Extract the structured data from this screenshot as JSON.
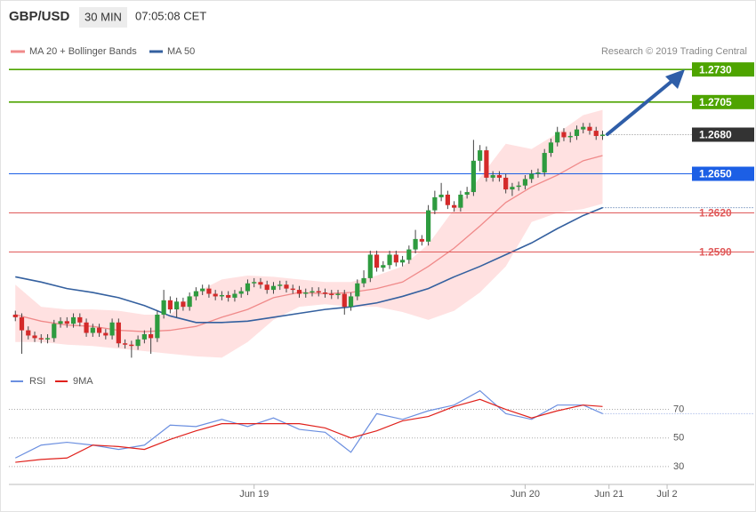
{
  "header": {
    "symbol": "GBP/USD",
    "interval": "30 MIN",
    "time": "07:05:08 CET"
  },
  "credit": "Research © 2019 Trading Central",
  "chart_data": [
    {
      "type": "candlestick",
      "up_color": "#2e9b3f",
      "down_color": "#d42a2a",
      "xlim": [
        -1,
        114.5
      ],
      "ylim": [
        1.2497,
        1.2741
      ],
      "open": [
        1.2542,
        1.254,
        1.253,
        1.2526,
        1.2524,
        1.2523,
        1.2524,
        1.2535,
        1.2537,
        1.2535,
        1.254,
        1.2536,
        1.2528,
        1.2532,
        1.2528,
        1.2526,
        1.2536,
        1.252,
        1.2519,
        1.2518,
        1.2523,
        1.2527,
        1.2524,
        1.2542,
        1.2553,
        1.2546,
        1.2552,
        1.2548,
        1.2556,
        1.256,
        1.2562,
        1.2558,
        1.2556,
        1.2557,
        1.2555,
        1.2558,
        1.256,
        1.2566,
        1.2567,
        1.2565,
        1.2561,
        1.2564,
        1.2565,
        1.2562,
        1.2561,
        1.2558,
        1.2559,
        1.256,
        1.2559,
        1.2558,
        1.2557,
        1.2558,
        1.2548,
        1.2556,
        1.2566,
        1.257,
        1.2588,
        1.2578,
        1.258,
        1.2588,
        1.2582,
        1.2584,
        1.2592,
        1.26,
        1.2598,
        1.2622,
        1.2632,
        1.2634,
        1.2626,
        1.2624,
        1.2634,
        1.2636,
        1.266,
        1.2668,
        1.2647,
        1.2649,
        1.2647,
        1.2638,
        1.264,
        1.2641,
        1.2646,
        1.265,
        1.2651,
        1.2666,
        1.2674,
        1.2682,
        1.2678,
        1.2679,
        1.2684,
        1.2686,
        1.2683,
        1.2679
      ],
      "high": [
        1.2545,
        1.2543,
        1.2533,
        1.2529,
        1.2527,
        1.2527,
        1.2538,
        1.254,
        1.254,
        1.2543,
        1.2543,
        1.2539,
        1.2535,
        1.2535,
        1.2531,
        1.2539,
        1.2539,
        1.2523,
        1.2522,
        1.2526,
        1.253,
        1.2532,
        1.2545,
        1.2561,
        1.2556,
        1.2555,
        1.2555,
        1.2559,
        1.2563,
        1.2565,
        1.2565,
        1.2561,
        1.256,
        1.256,
        1.2561,
        1.2563,
        1.2569,
        1.257,
        1.257,
        1.2568,
        1.2567,
        1.2568,
        1.2568,
        1.2565,
        1.2564,
        1.2562,
        1.2563,
        1.2563,
        1.2562,
        1.2561,
        1.2561,
        1.2561,
        1.2559,
        1.2569,
        1.2576,
        1.2591,
        1.2591,
        1.2583,
        1.2591,
        1.2591,
        1.2587,
        1.2595,
        1.2607,
        1.2603,
        1.2626,
        1.2637,
        1.2643,
        1.2637,
        1.2629,
        1.2637,
        1.264,
        1.2676,
        1.2672,
        1.2671,
        1.2652,
        1.2652,
        1.265,
        1.2643,
        1.2644,
        1.2649,
        1.2653,
        1.2654,
        1.2669,
        1.2677,
        1.2686,
        1.2685,
        1.2682,
        1.2687,
        1.2689,
        1.2689,
        1.2686,
        1.2683
      ],
      "low": [
        1.2537,
        1.2512,
        1.2523,
        1.2521,
        1.252,
        1.252,
        1.2521,
        1.2532,
        1.2532,
        1.2532,
        1.2533,
        1.2525,
        1.2525,
        1.2525,
        1.2523,
        1.2523,
        1.2517,
        1.2516,
        1.2509,
        1.2515,
        1.252,
        1.2512,
        1.2521,
        1.2539,
        1.2543,
        1.254,
        1.2545,
        1.2545,
        1.2553,
        1.2557,
        1.2555,
        1.2553,
        1.2553,
        1.2552,
        1.2552,
        1.2555,
        1.2557,
        1.2563,
        1.2562,
        1.2558,
        1.2558,
        1.2561,
        1.2559,
        1.2558,
        1.2555,
        1.2555,
        1.2556,
        1.2556,
        1.2555,
        1.2554,
        1.2554,
        1.2542,
        1.2545,
        1.2553,
        1.2563,
        1.2567,
        1.2575,
        1.2575,
        1.2577,
        1.2579,
        1.2579,
        1.2581,
        1.2589,
        1.2595,
        1.2595,
        1.2619,
        1.2629,
        1.2623,
        1.2621,
        1.2621,
        1.2631,
        1.2633,
        1.2652,
        1.2644,
        1.2644,
        1.2644,
        1.2635,
        1.2633,
        1.2637,
        1.2638,
        1.2643,
        1.2647,
        1.2648,
        1.2663,
        1.2671,
        1.2675,
        1.2674,
        1.2676,
        1.2681,
        1.268,
        1.2676,
        1.2676
      ],
      "close": [
        1.254,
        1.253,
        1.2526,
        1.2524,
        1.2523,
        1.2524,
        1.2535,
        1.2537,
        1.2535,
        1.254,
        1.2536,
        1.2528,
        1.2532,
        1.2528,
        1.2526,
        1.2536,
        1.252,
        1.2519,
        1.2518,
        1.2523,
        1.2527,
        1.2524,
        1.2542,
        1.2553,
        1.2546,
        1.2552,
        1.2548,
        1.2556,
        1.256,
        1.2562,
        1.2558,
        1.2556,
        1.2557,
        1.2555,
        1.2558,
        1.256,
        1.2566,
        1.2567,
        1.2565,
        1.2561,
        1.2564,
        1.2565,
        1.2562,
        1.2561,
        1.2558,
        1.2559,
        1.256,
        1.2559,
        1.2558,
        1.2557,
        1.2558,
        1.2548,
        1.2556,
        1.2566,
        1.257,
        1.2588,
        1.2578,
        1.258,
        1.2588,
        1.2582,
        1.2584,
        1.2592,
        1.26,
        1.2598,
        1.2622,
        1.2632,
        1.2634,
        1.2626,
        1.2624,
        1.2634,
        1.2636,
        1.266,
        1.2668,
        1.2647,
        1.2649,
        1.2647,
        1.2638,
        1.264,
        1.2641,
        1.2646,
        1.265,
        1.2651,
        1.2666,
        1.2674,
        1.2682,
        1.2678,
        1.2679,
        1.2684,
        1.2686,
        1.2683,
        1.2679,
        1.268
      ],
      "levels": [
        {
          "value": 1.273,
          "label": "1.2730",
          "color": "#4ea400",
          "style": "box"
        },
        {
          "value": 1.2705,
          "label": "1.2705",
          "color": "#4ea400",
          "style": "box"
        },
        {
          "value": 1.268,
          "label": "1.2680",
          "color": "#333333",
          "style": "tag"
        },
        {
          "value": 1.265,
          "label": "1.2650",
          "color": "#1c5fe5",
          "style": "box"
        },
        {
          "value": 1.262,
          "label": "1.2620",
          "color": "#e05a5a",
          "style": "text"
        },
        {
          "value": 1.259,
          "label": "1.2590",
          "color": "#e05a5a",
          "style": "text"
        }
      ],
      "series": [
        {
          "name": "MA 20 + Bollinger Bands",
          "color": "#f08a8a",
          "band_color": "#ffdcdc",
          "x": [
            0,
            4,
            8,
            12,
            16,
            20,
            24,
            28,
            32,
            36,
            40,
            44,
            48,
            52,
            56,
            60,
            64,
            68,
            72,
            76,
            80,
            84,
            88,
            91
          ],
          "values": [
            1.2542,
            1.2537,
            1.2534,
            1.2533,
            1.253,
            1.2529,
            1.253,
            1.2533,
            1.254,
            1.2546,
            1.2555,
            1.2559,
            1.2558,
            1.2559,
            1.2562,
            1.2567,
            1.2579,
            1.2593,
            1.261,
            1.2628,
            1.264,
            1.2649,
            1.266,
            1.2664
          ],
          "upper": [
            1.2565,
            1.2548,
            1.2546,
            1.2546,
            1.2545,
            1.2542,
            1.2542,
            1.2559,
            1.2569,
            1.2572,
            1.2571,
            1.2569,
            1.2567,
            1.2567,
            1.2572,
            1.2579,
            1.2596,
            1.2623,
            1.2647,
            1.2673,
            1.2669,
            1.2681,
            1.2695,
            1.2699
          ],
          "lower": [
            1.2521,
            1.2521,
            1.2519,
            1.2518,
            1.2516,
            1.2514,
            1.2512,
            1.251,
            1.2509,
            1.2521,
            1.2538,
            1.2548,
            1.255,
            1.2548,
            1.2548,
            1.2544,
            1.2538,
            1.2545,
            1.2559,
            1.2579,
            1.2613,
            1.262,
            1.2623,
            1.2627
          ]
        },
        {
          "name": "MA 50",
          "color": "#34609f",
          "x": [
            0,
            4,
            8,
            12,
            16,
            20,
            24,
            28,
            32,
            36,
            40,
            44,
            48,
            52,
            56,
            60,
            64,
            68,
            72,
            76,
            80,
            84,
            88,
            91
          ],
          "values": [
            1.2571,
            1.2567,
            1.2562,
            1.2559,
            1.2555,
            1.2549,
            1.2541,
            1.2536,
            1.2536,
            1.2537,
            1.254,
            1.2543,
            1.2546,
            1.2548,
            1.2551,
            1.2556,
            1.2562,
            1.2571,
            1.2579,
            1.2588,
            1.2597,
            1.2608,
            1.2618,
            1.2624
          ]
        }
      ]
    },
    {
      "type": "line",
      "xlim": [
        -1,
        114.5
      ],
      "ylim": [
        20,
        84
      ],
      "yticks": [
        30,
        50,
        70
      ],
      "grid": true,
      "xticks": [
        {
          "value": 37,
          "label": "Jun 19"
        },
        {
          "value": 79,
          "label": "Jun 20"
        },
        {
          "value": 92,
          "label": "Jun 21"
        },
        {
          "value": 101,
          "label": "Jul 2"
        }
      ],
      "series": [
        {
          "name": "RSI",
          "color": "#6b8fe0",
          "x": [
            0,
            4,
            8,
            12,
            16,
            20,
            24,
            28,
            32,
            36,
            40,
            44,
            48,
            52,
            56,
            60,
            64,
            68,
            72,
            76,
            80,
            84,
            88,
            91
          ],
          "values": [
            36,
            45,
            47,
            45,
            42,
            45,
            59,
            58,
            63,
            58,
            64,
            56,
            54,
            40,
            67,
            63,
            69,
            73,
            83,
            67,
            63,
            73,
            73,
            67
          ]
        },
        {
          "name": "9MA",
          "color": "#e0211c",
          "x": [
            0,
            4,
            8,
            12,
            16,
            20,
            24,
            28,
            32,
            36,
            40,
            44,
            48,
            52,
            56,
            60,
            64,
            68,
            72,
            76,
            80,
            84,
            88,
            91
          ],
          "values": [
            33,
            35,
            36,
            45,
            44,
            42,
            49,
            55,
            60,
            60,
            60,
            60,
            57,
            50,
            55,
            62,
            65,
            72,
            77,
            70,
            64,
            69,
            73,
            72
          ]
        }
      ]
    }
  ]
}
